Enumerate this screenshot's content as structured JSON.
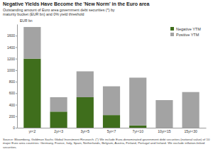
{
  "chart_data": {
    "type": "bar",
    "title": "Negative Yields Have Become the 'New Norm' in the Euro area",
    "subtitle": "Outstanding amount of Euro area government debt securities (*) by maturity bucket (EUR bn) and 0% yield threshold",
    "y_label": "EUR bn",
    "categories": [
      "yr<2",
      "2yr<3",
      "3yr<5",
      "5yr<7",
      "7yr<10",
      "10yr<15",
      "15yr<30"
    ],
    "series": [
      {
        "name": "Negative YTM",
        "color": "#3f6e1c",
        "values": [
          1200,
          280,
          530,
          220,
          40,
          0,
          0
        ]
      },
      {
        "name": "Positive YTM",
        "color": "#a3a3a3",
        "values": [
          550,
          250,
          450,
          500,
          830,
          480,
          620
        ]
      }
    ],
    "stacked": true,
    "ylim": [
      0,
      1800
    ],
    "yticks": [
      0,
      200,
      400,
      600,
      800,
      1000,
      1200,
      1400,
      1600
    ],
    "grid": false,
    "legend": "upper right",
    "source": "Source: Bloomberg, Goldman Sachs Global Investment Research. (*) We include Euro-denominated government debt securities (notional value) of 10 major Euro area countries: Germany, France, Italy, Spain, Netherlands, Belgium, Austria, Finland, Portugal and Ireland. We exclude inflation-linked securities."
  }
}
